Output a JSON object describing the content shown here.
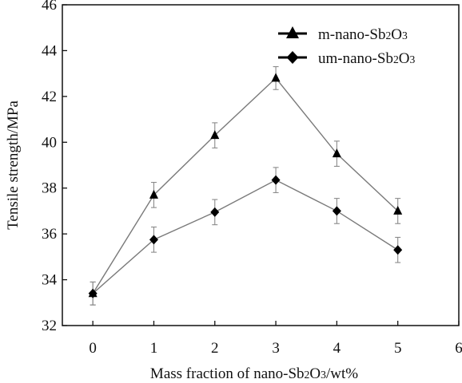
{
  "chart_data": {
    "type": "line",
    "title": "",
    "xlabel": "Mass fraction of nano-Sb2O3/wt%",
    "ylabel": "Tensile strength/MPa",
    "xlim": [
      -0.5,
      6
    ],
    "ylim": [
      32,
      46
    ],
    "xticks": [
      0,
      1,
      2,
      3,
      4,
      5,
      6
    ],
    "yticks": [
      32,
      34,
      36,
      38,
      40,
      42,
      44,
      46
    ],
    "x": [
      0,
      1,
      2,
      3,
      4,
      5
    ],
    "legend_position": "top-right",
    "grid": false,
    "series": [
      {
        "name": "m-nano-Sb2O3",
        "marker": "triangle",
        "values": [
          33.4,
          37.7,
          40.3,
          42.8,
          39.5,
          37.0
        ],
        "error": [
          0.5,
          0.55,
          0.55,
          0.5,
          0.55,
          0.55
        ]
      },
      {
        "name": "um-nano-Sb2O3",
        "marker": "diamond",
        "values": [
          33.4,
          35.75,
          36.95,
          38.35,
          37.0,
          35.3
        ],
        "error": [
          0.5,
          0.55,
          0.55,
          0.55,
          0.55,
          0.55
        ]
      }
    ]
  },
  "colors": {
    "series_line": "#7a7a7a",
    "marker": "#000000",
    "error_bar": "#8a8a8a",
    "axis": "#111111"
  }
}
